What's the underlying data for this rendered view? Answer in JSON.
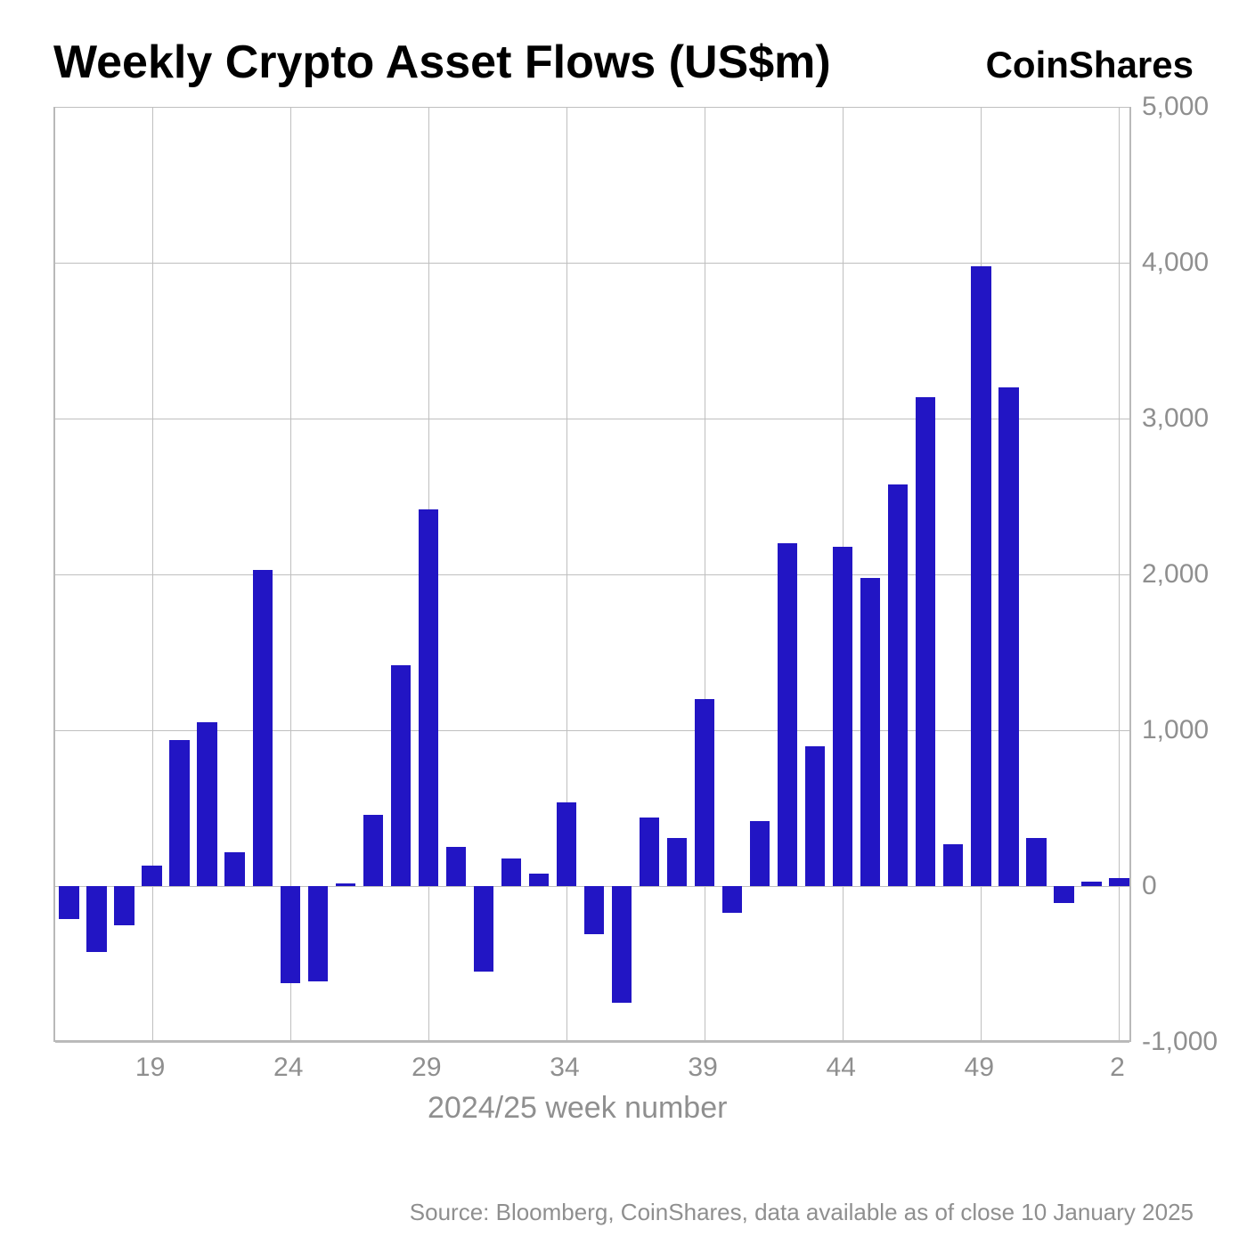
{
  "title": "Weekly Crypto Asset Flows (US$m)",
  "brand": "CoinShares",
  "x_axis_title": "2024/25 week number",
  "source_text": "Source: Bloomberg, CoinShares, data available as of close 10 January 2025",
  "chart": {
    "type": "bar",
    "bar_color": "#2215c4",
    "background_color": "#ffffff",
    "grid_color": "#bfbfbf",
    "axis_color": "#b9b9b9",
    "title_fontsize": 52,
    "label_fontsize": 30,
    "label_color": "#8f8f8f",
    "ylim": [
      -1000,
      5000
    ],
    "ytick_step": 1000,
    "ytick_labels": [
      "-1,000",
      "0",
      "1,000",
      "2,000",
      "3,000",
      "4,000",
      "5,000"
    ],
    "x_tick_weeks": [
      19,
      24,
      29,
      34,
      39,
      44,
      49,
      2
    ],
    "bar_width_ratio": 0.72,
    "weeks": [
      16,
      17,
      18,
      19,
      20,
      21,
      22,
      23,
      24,
      25,
      26,
      27,
      28,
      29,
      30,
      31,
      32,
      33,
      34,
      35,
      36,
      37,
      38,
      39,
      40,
      41,
      42,
      43,
      44,
      45,
      46,
      47,
      48,
      49,
      50,
      51,
      52,
      1,
      2
    ],
    "values": [
      -210,
      -420,
      -250,
      130,
      940,
      1050,
      215,
      2030,
      -620,
      -610,
      20,
      455,
      1420,
      2420,
      250,
      -550,
      180,
      80,
      540,
      -310,
      -750,
      440,
      310,
      1200,
      -170,
      420,
      2200,
      900,
      2180,
      1980,
      2580,
      3140,
      270,
      3980,
      3200,
      310,
      -110,
      30,
      50
    ]
  }
}
